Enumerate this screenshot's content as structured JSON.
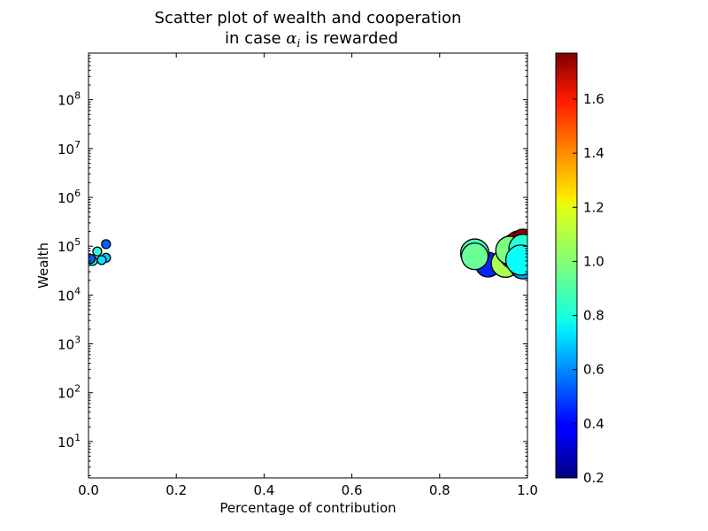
{
  "chart_data": {
    "type": "scatter",
    "title_line1": "Scatter plot of wealth and cooperation",
    "title_line2_prefix": "in case ",
    "title_symbol": "α",
    "title_subscript": "i",
    "title_line2_suffix": " is rewarded",
    "xlabel": "Percentage of contribution",
    "ylabel": "Wealth",
    "xlim": [
      0.0,
      1.0
    ],
    "ylim": [
      1.8,
      900000000
    ],
    "yscale": "log",
    "x_ticks": [
      "0.0",
      "0.2",
      "0.4",
      "0.6",
      "0.8",
      "1.0"
    ],
    "y_ticks": [
      {
        "base": "10",
        "exp": "1",
        "value": 10
      },
      {
        "base": "10",
        "exp": "2",
        "value": 100
      },
      {
        "base": "10",
        "exp": "3",
        "value": 1000
      },
      {
        "base": "10",
        "exp": "4",
        "value": 10000
      },
      {
        "base": "10",
        "exp": "5",
        "value": 100000
      },
      {
        "base": "10",
        "exp": "6",
        "value": 1000000
      },
      {
        "base": "10",
        "exp": "7",
        "value": 10000000
      },
      {
        "base": "10",
        "exp": "8",
        "value": 100000000
      }
    ],
    "colorbar": {
      "min": 0.2,
      "max": 1.77,
      "colormap": "jet",
      "ticks": [
        "0.2",
        "0.4",
        "0.6",
        "0.8",
        "1.0",
        "1.2",
        "1.4",
        "1.6"
      ]
    },
    "grid": false,
    "points": [
      {
        "x": 0.04,
        "y": 110000,
        "c": 0.55,
        "size": 5
      },
      {
        "x": 0.02,
        "y": 78000,
        "c": 0.85,
        "size": 5
      },
      {
        "x": 0.04,
        "y": 58000,
        "c": 0.7,
        "size": 5
      },
      {
        "x": 0.03,
        "y": 52000,
        "c": 0.75,
        "size": 5
      },
      {
        "x": 0.01,
        "y": 50000,
        "c": 0.85,
        "size": 5
      },
      {
        "x": 0.005,
        "y": 55000,
        "c": 0.55,
        "size": 5
      },
      {
        "x": 0.91,
        "y": 42000,
        "c": 0.45,
        "size": 14
      },
      {
        "x": 0.88,
        "y": 72000,
        "c": 0.9,
        "size": 16
      },
      {
        "x": 0.88,
        "y": 62000,
        "c": 0.95,
        "size": 15
      },
      {
        "x": 0.95,
        "y": 45000,
        "c": 1.05,
        "size": 16
      },
      {
        "x": 0.97,
        "y": 95000,
        "c": 1.5,
        "size": 15
      },
      {
        "x": 0.98,
        "y": 110000,
        "c": 1.62,
        "size": 15
      },
      {
        "x": 0.99,
        "y": 130000,
        "c": 1.75,
        "size": 13
      },
      {
        "x": 0.97,
        "y": 70000,
        "c": 0.9,
        "size": 17
      },
      {
        "x": 0.98,
        "y": 55000,
        "c": 0.75,
        "size": 16
      },
      {
        "x": 0.99,
        "y": 40000,
        "c": 0.65,
        "size": 15
      },
      {
        "x": 0.96,
        "y": 82000,
        "c": 0.98,
        "size": 16
      },
      {
        "x": 0.99,
        "y": 90000,
        "c": 0.85,
        "size": 16
      },
      {
        "x": 0.985,
        "y": 52000,
        "c": 0.8,
        "size": 17
      }
    ]
  }
}
